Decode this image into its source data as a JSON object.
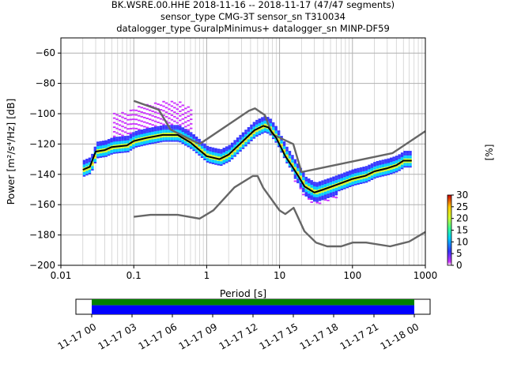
{
  "title_lines": [
    "BK.WSRE.00.HHE   2018-11-16 -- 2018-11-17  (47/47 segments)",
    "sensor_type CMG-3T sensor_sn T310034",
    "datalogger_type GuralpMinimus+ datalogger_sn MINP-DF59"
  ],
  "colorbar": {
    "label": "[%]",
    "ticks": [
      "0",
      "5",
      "10",
      "15",
      "20",
      "25",
      "30"
    ],
    "range": [
      0,
      30
    ]
  },
  "timeline": {
    "ticks": [
      "11-17 00",
      "11-17 03",
      "11-17 06",
      "11-17 09",
      "11-17 12",
      "11-17 15",
      "11-17 18",
      "11-17 21",
      "11-18 00"
    ],
    "colors": {
      "data": "#0000ff",
      "gap_free": "#008000"
    }
  },
  "chart_data": {
    "type": "line",
    "xlabel": "Period [s]",
    "ylabel": "Power [m²/s⁴/Hz] [dB]",
    "xscale": "log",
    "xlim": [
      0.01,
      1000
    ],
    "ylim": [
      -200,
      -50
    ],
    "x_tick_labels": [
      "0.01",
      "0.1",
      "1",
      "10",
      "100",
      "1000"
    ],
    "y_tick_labels": [
      "−60",
      "−80",
      "−100",
      "−120",
      "−140",
      "−160",
      "−180",
      "−200"
    ],
    "y_ticks": [
      -60,
      -80,
      -100,
      -120,
      -140,
      -160,
      -180,
      -200
    ],
    "x_ticks": [
      0.01,
      0.1,
      1,
      10,
      100,
      1000
    ],
    "grid": true,
    "series": [
      {
        "role": "nhnm",
        "color": "#666666",
        "points": [
          [
            0.1,
            -91.5
          ],
          [
            0.22,
            -97.4
          ],
          [
            0.32,
            -110.5
          ],
          [
            0.8,
            -120
          ],
          [
            3.8,
            -98
          ],
          [
            4.6,
            -96.5
          ],
          [
            6.3,
            -101
          ],
          [
            7.9,
            -113.5
          ],
          [
            15.4,
            -120
          ],
          [
            20,
            -138.5
          ],
          [
            354.8,
            -126
          ],
          [
            1000,
            -111.5
          ]
        ]
      },
      {
        "role": "nlnm",
        "color": "#666666",
        "points": [
          [
            0.1,
            -168
          ],
          [
            0.17,
            -166.7
          ],
          [
            0.4,
            -166.7
          ],
          [
            0.8,
            -169.2
          ],
          [
            1.24,
            -163.7
          ],
          [
            2.4,
            -148.6
          ],
          [
            4.3,
            -141.1
          ],
          [
            5,
            -141.1
          ],
          [
            6,
            -149
          ],
          [
            10,
            -163.8
          ],
          [
            12,
            -166.2
          ],
          [
            15.6,
            -162.1
          ],
          [
            21.9,
            -177.5
          ],
          [
            31.6,
            -185
          ],
          [
            45,
            -187.5
          ],
          [
            70,
            -187.5
          ],
          [
            101,
            -185
          ],
          [
            154,
            -185
          ],
          [
            328,
            -187.5
          ],
          [
            600,
            -184.4
          ],
          [
            1000,
            -178
          ]
        ]
      },
      {
        "role": "mode",
        "color": "#000000",
        "points": [
          [
            0.02,
            -137
          ],
          [
            0.025,
            -135
          ],
          [
            0.03,
            -125
          ],
          [
            0.04,
            -124
          ],
          [
            0.05,
            -122
          ],
          [
            0.08,
            -121
          ],
          [
            0.1,
            -118
          ],
          [
            0.15,
            -116
          ],
          [
            0.25,
            -114
          ],
          [
            0.4,
            -114
          ],
          [
            0.6,
            -119
          ],
          [
            1,
            -128
          ],
          [
            1.5,
            -130
          ],
          [
            2,
            -127
          ],
          [
            3,
            -119
          ],
          [
            4.5,
            -111
          ],
          [
            6,
            -108
          ],
          [
            7,
            -109
          ],
          [
            9,
            -116
          ],
          [
            12,
            -128
          ],
          [
            15,
            -135
          ],
          [
            18,
            -141
          ],
          [
            22,
            -148
          ],
          [
            30,
            -152
          ],
          [
            40,
            -150
          ],
          [
            60,
            -147
          ],
          [
            100,
            -143
          ],
          [
            150,
            -141
          ],
          [
            200,
            -138
          ],
          [
            300,
            -136
          ],
          [
            400,
            -134
          ],
          [
            500,
            -131
          ],
          [
            650,
            -131
          ]
        ]
      }
    ]
  }
}
